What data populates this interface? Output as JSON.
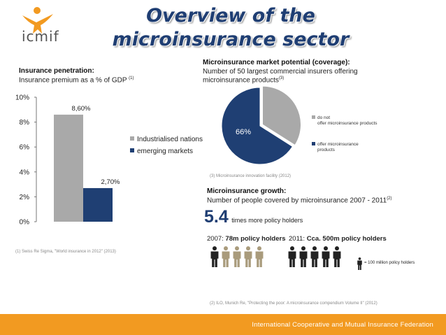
{
  "header": {
    "logo_text": "icmif",
    "title_line1": "Overview of the",
    "title_line2": "microinsurance sector"
  },
  "penetration": {
    "title": "Insurance penetration:",
    "subtitle": "Insurance premium as a % of GDP",
    "ref": "(1)",
    "source": "(1) Swiss Re Sigma, \"World insurance in 2012\" (2013)"
  },
  "market_potential": {
    "title": "Microinsurance market potential (coverage):",
    "subtitle_line1": "Number of 50 largest commercial insurers offering",
    "subtitle_line2": "microinsurance products",
    "ref": "(3)",
    "source": "(3) Microinsurance innovation facility (2012)"
  },
  "growth": {
    "title": "Microinsurance growth:",
    "subtitle": "Number of people covered by microinsurance  2007 - 2011",
    "ref": "(2)",
    "multiplier": "5.4",
    "multiplier_text": "times more policy holders",
    "year2007_label": "2007:",
    "year2007_value": "78m policy holders",
    "year2011_label": "2011:",
    "year2011_value": "Cca. 500m policy holders",
    "legend_text": "= 100 million policy holders",
    "source": "(2) ILO, Munich Re, \"Protecting the poor: A microinsurance compendium Volume II\" (2012)"
  },
  "colors": {
    "title": "#1f3e73",
    "bar_grey": "#a9a9a9",
    "bar_blue": "#1f3f73",
    "footer": "#f29a21",
    "people_2007": "#a99b7c",
    "people_2011": "#222222"
  },
  "chart_data": [
    {
      "type": "bar",
      "categories": [
        ""
      ],
      "series": [
        {
          "name": "Industrialised nations",
          "values": [
            8.6
          ],
          "label": "8,60%"
        },
        {
          "name": "emerging markets",
          "values": [
            2.7
          ],
          "label": "2,70%"
        }
      ],
      "yticks": [
        "0%",
        "2%",
        "4%",
        "6%",
        "8%",
        "10%"
      ],
      "ylim": [
        0,
        10
      ],
      "legend_position": "right"
    },
    {
      "type": "pie",
      "slices": [
        {
          "name": "do not offer microinsurance products",
          "value": 34
        },
        {
          "name": "offer microinsurance products",
          "value": 66,
          "label": "66%"
        }
      ],
      "legend_position": "right"
    }
  ],
  "footer": {
    "text": "International Cooperative and Mutual Insurance Federation"
  }
}
